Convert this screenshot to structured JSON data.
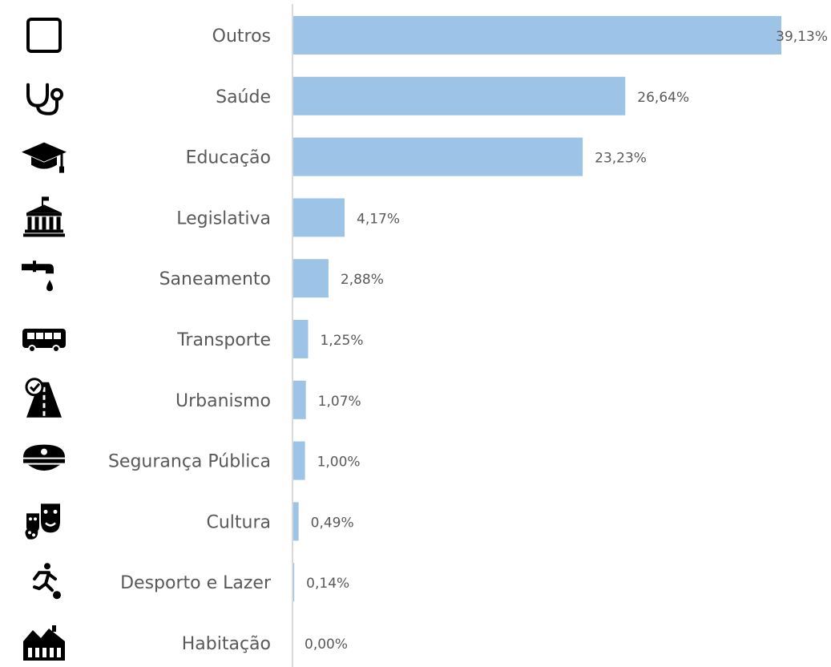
{
  "chart_data": {
    "type": "bar",
    "orientation": "horizontal",
    "categories": [
      "Outros",
      "Saúde",
      "Educação",
      "Legislativa",
      "Saneamento",
      "Transporte",
      "Urbanismo",
      "Segurança Pública",
      "Cultura",
      "Desporto e Lazer",
      "Habitação"
    ],
    "values": [
      39.13,
      26.64,
      23.23,
      4.17,
      2.88,
      1.25,
      1.07,
      1.0,
      0.49,
      0.14,
      0.0
    ],
    "value_labels": [
      "39,13%",
      "26,64%",
      "23,23%",
      "4,17%",
      "2,88%",
      "1,25%",
      "1,07%",
      "1,00%",
      "0,49%",
      "0,14%",
      "0,00%"
    ],
    "icons": [
      "square-outline-icon",
      "stethoscope-icon",
      "graduation-cap-icon",
      "government-building-icon",
      "water-tap-icon",
      "bus-icon",
      "road-icon",
      "police-cap-icon",
      "theater-masks-icon",
      "runner-icon",
      "houses-icon"
    ],
    "xlim": [
      0,
      39.13
    ],
    "bar_color": "#9dc3e6",
    "axis_color": "#d9d9d9",
    "text_color": "#595959",
    "icon_color": "#000000",
    "grid": false,
    "legend": "none"
  }
}
